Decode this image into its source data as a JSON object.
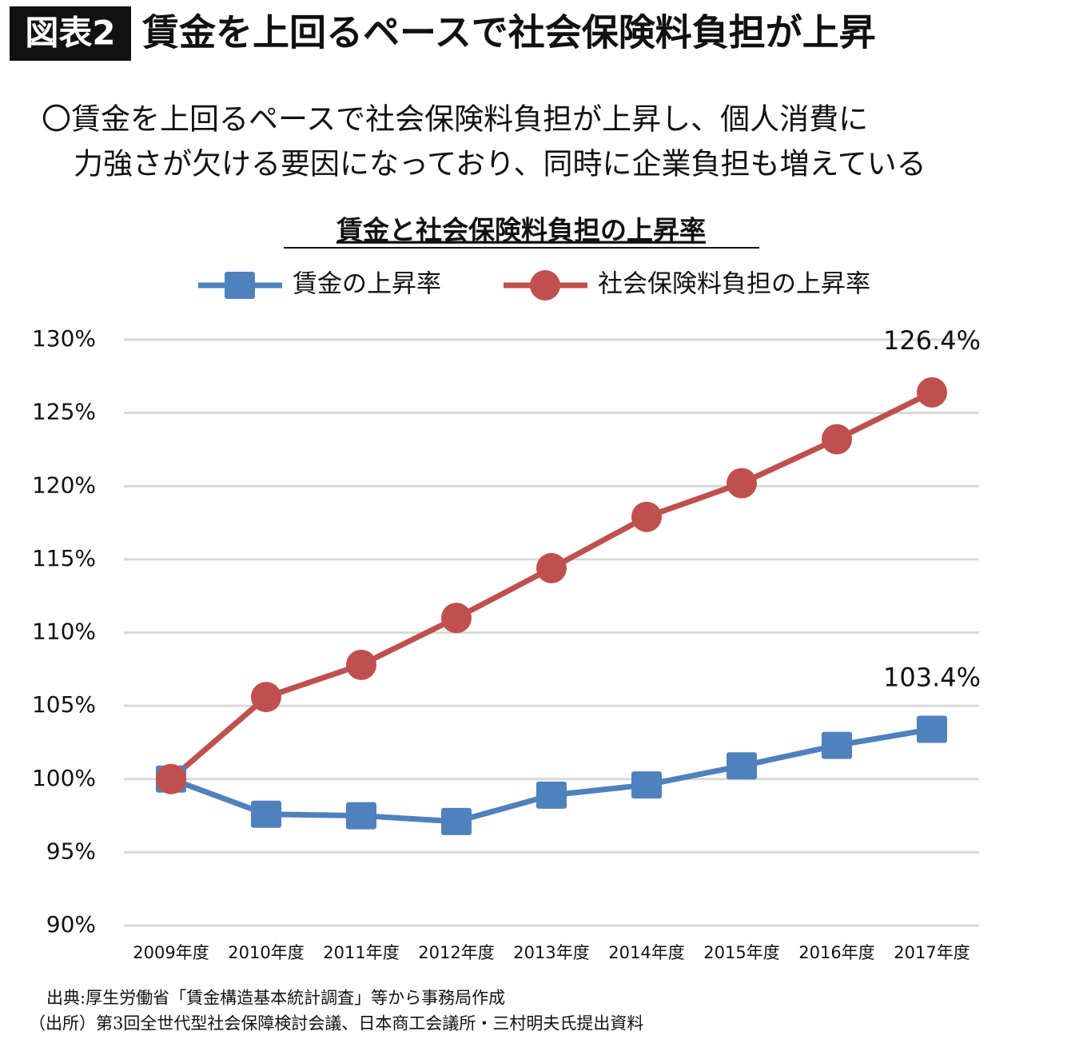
{
  "header": {
    "label": "図表2",
    "title": "賃金を上回るペースで社会保険料負担が上昇",
    "lead": [
      "〇賃金を上回るペースで社会保険料負担が上昇し、個人消費に",
      "力強さが欠ける要因になっており、同時に企業負担も増えている"
    ]
  },
  "chart_data": {
    "type": "line",
    "title": "賃金と社会保険料負担の上昇率",
    "categories": [
      "2009年度",
      "2010年度",
      "2011年度",
      "2012年度",
      "2013年度",
      "2014年度",
      "2015年度",
      "2016年度",
      "2017年度"
    ],
    "series": [
      {
        "name": "賃金の上昇率",
        "color": "#4f81bd",
        "marker": "square",
        "values": [
          100,
          97.6,
          97.5,
          97.1,
          98.9,
          99.6,
          100.9,
          102.3,
          103.4
        ],
        "value_labels": [
          null,
          null,
          null,
          null,
          null,
          null,
          null,
          null,
          "103.4%"
        ]
      },
      {
        "name": "社会保険料負担の上昇率",
        "color": "#c0504d",
        "marker": "circle",
        "values": [
          100,
          105.6,
          107.8,
          111.0,
          114.4,
          117.9,
          120.2,
          123.2,
          126.4
        ],
        "value_labels": [
          null,
          null,
          null,
          null,
          null,
          null,
          null,
          null,
          "126.4%"
        ]
      }
    ],
    "ylim": [
      90,
      130
    ],
    "yticks": [
      {
        "value": 90,
        "label": "90%"
      },
      {
        "value": 95,
        "label": "95%"
      },
      {
        "value": 100,
        "label": "100%"
      },
      {
        "value": 105,
        "label": "105%"
      },
      {
        "value": 110,
        "label": "110%"
      },
      {
        "value": 115,
        "label": "115%"
      },
      {
        "value": 120,
        "label": "120%"
      },
      {
        "value": 125,
        "label": "125%"
      },
      {
        "value": 130,
        "label": "130%"
      }
    ],
    "grid": true,
    "legend": "top"
  },
  "notes": [
    "出典:厚生労働省「賃金構造基本統計調査」等から事務局作成",
    "（出所）第3回全世代型社会保障検討会議、日本商工会議所・三村明夫氏提出資料"
  ]
}
